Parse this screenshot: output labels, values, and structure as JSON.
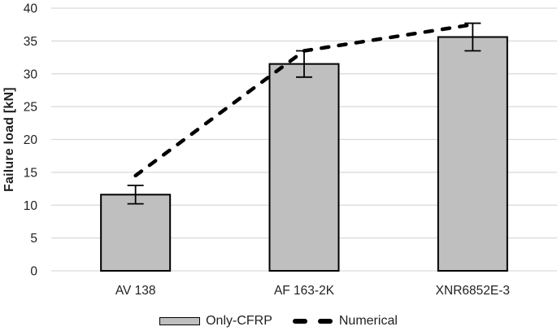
{
  "chart_data": {
    "type": "bar",
    "title": "",
    "categories": [
      "AV 138",
      "AF 163-2K",
      "XNR6852E-3"
    ],
    "series": [
      {
        "name": "Only-CFRP",
        "type": "bar",
        "values": [
          11.6,
          31.5,
          35.6
        ],
        "error_bars": [
          1.4,
          2.0,
          2.1
        ]
      },
      {
        "name": "Numerical",
        "type": "line",
        "line_style": "dashed",
        "values": [
          14.5,
          33.5,
          37.5
        ]
      }
    ],
    "xlabel": "",
    "ylabel": "Failure load [kN]",
    "ylim": [
      0,
      40
    ],
    "yticks": [
      0,
      5,
      10,
      15,
      20,
      25,
      30,
      35,
      40
    ],
    "grid": "horizontal",
    "legend_position": "bottom-center",
    "colors": {
      "bar_fill": "#bfbfbf",
      "bar_border": "#000000",
      "line": "#000000",
      "gridline": "#d9d9d9",
      "text": "#1f1f1f",
      "background": "#ffffff"
    }
  }
}
